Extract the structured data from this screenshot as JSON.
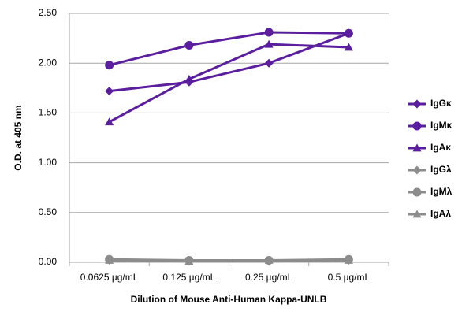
{
  "chart_data": {
    "type": "line",
    "x_label": "Dilution of Mouse Anti-Human Kappa-UNLB",
    "y_label": "O.D. at 405 nm",
    "categories": [
      "0.0625 µg/mL",
      "0.125 µg/mL",
      "0.25 µg/mL",
      "0.5 µg/mL"
    ],
    "series": [
      {
        "name": "IgGκ",
        "color": "#5a1e9e",
        "marker": "diamond",
        "values": [
          1.72,
          1.81,
          2.0,
          2.3
        ]
      },
      {
        "name": "IgMκ",
        "color": "#5a1e9e",
        "marker": "circle",
        "values": [
          1.98,
          2.18,
          2.31,
          2.3
        ]
      },
      {
        "name": "IgAκ",
        "color": "#5a1e9e",
        "marker": "triangle",
        "values": [
          1.41,
          1.84,
          2.19,
          2.16
        ]
      },
      {
        "name": "IgGλ",
        "color": "#8c8c8c",
        "marker": "diamond",
        "values": [
          0.02,
          0.01,
          0.01,
          0.02
        ]
      },
      {
        "name": "IgMλ",
        "color": "#8c8c8c",
        "marker": "circle",
        "values": [
          0.03,
          0.02,
          0.02,
          0.03
        ]
      },
      {
        "name": "IgAλ",
        "color": "#8c8c8c",
        "marker": "triangle",
        "values": [
          0.02,
          0.01,
          0.02,
          0.02
        ]
      }
    ],
    "ylim": [
      0,
      2.5
    ],
    "yticks": [
      {
        "value": 0,
        "label": "0.00"
      },
      {
        "value": 0.5,
        "label": "0.50"
      },
      {
        "value": 1,
        "label": "1.00"
      },
      {
        "value": 1.5,
        "label": "1.50"
      },
      {
        "value": 2,
        "label": "2.00"
      },
      {
        "value": 2.5,
        "label": "2.50"
      }
    ],
    "grid": true,
    "legend": "right"
  }
}
